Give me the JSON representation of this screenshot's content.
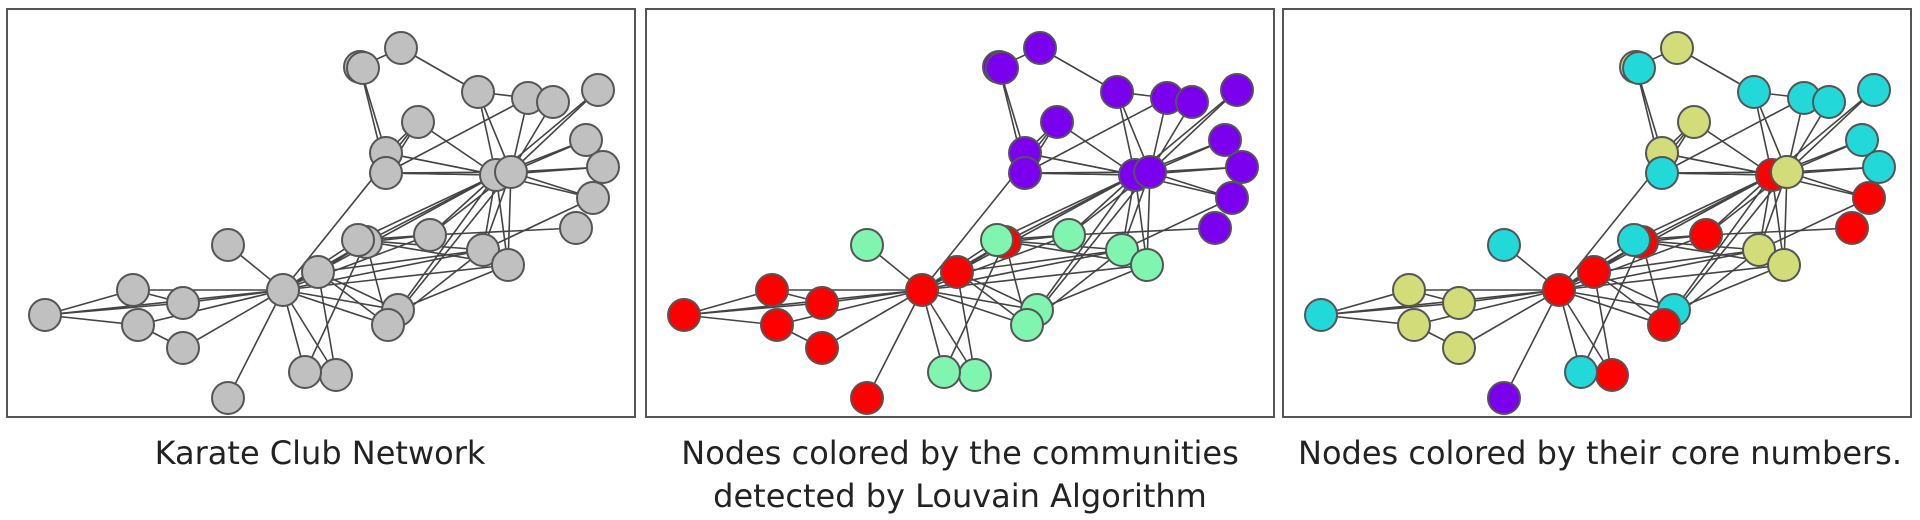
{
  "panels": [
    {
      "id": "plain",
      "caption": "Karate Club Network"
    },
    {
      "id": "louvain",
      "caption": "Nodes colored by the communities\ndetected by Louvain Algorithm"
    },
    {
      "id": "core",
      "caption": "Nodes colored by their core numbers."
    }
  ],
  "colors": {
    "gray": "#c0c0c0",
    "red": "#ff0000",
    "mint": "#7ff5b0",
    "purple": "#7b00ee",
    "olive": "#d2dd7a",
    "cyan": "#22d8d8",
    "edge": "#444444",
    "stroke": "#555555"
  },
  "louvain_groups": {
    "red": [
      0,
      1,
      2,
      3,
      4,
      5,
      6,
      7,
      8
    ],
    "mint": [
      9,
      10,
      11,
      12,
      13,
      14,
      15,
      16,
      17
    ],
    "purple": [
      18,
      19,
      20,
      21,
      22,
      23,
      24,
      25,
      26,
      27,
      28,
      29,
      30,
      31,
      32,
      33
    ]
  },
  "core_groups": {
    "purple": [
      7
    ],
    "cyan": [
      0,
      9,
      10,
      11,
      14,
      22,
      23,
      24,
      25,
      26,
      27,
      28,
      29
    ],
    "olive": [
      1,
      2,
      3,
      4,
      16,
      17,
      18,
      19,
      20,
      21,
      33
    ],
    "red": [
      5,
      6,
      8,
      12,
      13,
      15,
      30,
      31,
      32
    ]
  }
}
